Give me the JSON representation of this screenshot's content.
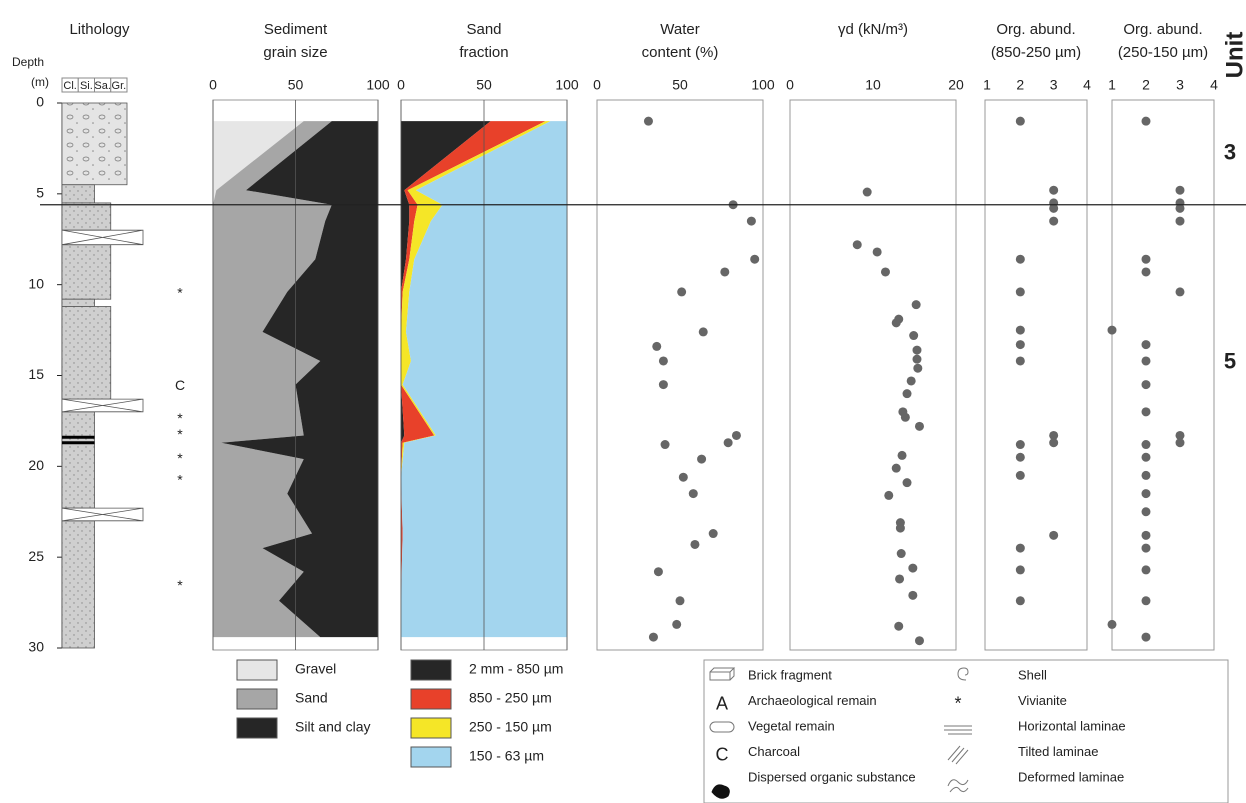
{
  "units": {
    "title": "Unit",
    "boundary": 5.6,
    "items": [
      {
        "label": "3",
        "top": 0,
        "bottom": 5.6
      },
      {
        "label": "5",
        "top": 5.6,
        "bottom": 23
      }
    ]
  },
  "symbol_legend": [
    {
      "label": "Brick fragment"
    },
    {
      "symbol": "A",
      "label": "Archaeological remain"
    },
    {
      "label": "Vegetal remain"
    },
    {
      "symbol": "C",
      "label": "Charcoal"
    },
    {
      "label": "Dispersed organic substance"
    },
    {
      "label": "Shell"
    },
    {
      "symbol": "*",
      "label": "Vivianite"
    },
    {
      "label": "Horizontal laminae"
    },
    {
      "label": "Tilted laminae"
    },
    {
      "label": "Deformed laminae"
    }
  ],
  "chart_data": [
    {
      "type": "lithology",
      "title": [
        "Lithology"
      ],
      "y_label": [
        "Depth",
        "(m)"
      ],
      "ylim": [
        0,
        30
      ],
      "yticks": [
        0,
        5,
        10,
        15,
        20,
        25,
        30
      ],
      "columns": [
        "Cl.",
        "Si.",
        "Sa.",
        "Gr."
      ],
      "layers": [
        {
          "top": 0,
          "bottom": 4.5,
          "grain": "Gr."
        },
        {
          "top": 4.5,
          "bottom": 5.5,
          "grain": "Si."
        },
        {
          "top": 5.5,
          "bottom": 7,
          "grain": "Sa."
        },
        {
          "top": 7.8,
          "bottom": 10.8,
          "grain": "Sa."
        },
        {
          "top": 10.8,
          "bottom": 11.2,
          "grain": "Si."
        },
        {
          "top": 11.2,
          "bottom": 16.3,
          "grain": "Sa."
        },
        {
          "top": 17,
          "bottom": 22.3,
          "grain": "Si."
        },
        {
          "top": 23,
          "bottom": 30,
          "grain": "Si."
        }
      ],
      "gaps": [
        [
          7,
          7.8
        ],
        [
          16.3,
          17
        ],
        [
          22.3,
          23
        ]
      ],
      "bands": [
        18.4,
        18.7
      ],
      "annotations": [
        {
          "depth": 10.5,
          "label": "*"
        },
        {
          "depth": 15.6,
          "label": "C"
        },
        {
          "depth": 17.4,
          "label": "*"
        },
        {
          "depth": 18.3,
          "label": "*"
        },
        {
          "depth": 19.6,
          "label": "*"
        },
        {
          "depth": 20.8,
          "label": "*"
        },
        {
          "depth": 26.6,
          "label": "*"
        }
      ]
    },
    {
      "type": "stacked-area",
      "title": [
        "Sediment",
        "grain size"
      ],
      "xlim": [
        0,
        100
      ],
      "xticks": [
        0,
        50,
        100
      ],
      "grid": true,
      "depth": [
        1,
        4.8,
        5.6,
        6.5,
        8.6,
        10.4,
        12.6,
        14.2,
        15.5,
        18.3,
        18.7,
        19.6,
        21.5,
        23.7,
        24.5,
        25.8,
        27.4,
        29.4
      ],
      "series": [
        {
          "name": "Gravel",
          "color": "#e6e6e6",
          "values": [
            55,
            2,
            0,
            0,
            0,
            0,
            0,
            0,
            0,
            0,
            0,
            0,
            0,
            0,
            0,
            0,
            0,
            0
          ]
        },
        {
          "name": "Sand",
          "color": "#a6a6a6",
          "values": [
            17,
            18,
            72,
            68,
            62,
            45,
            30,
            65,
            50,
            55,
            5,
            55,
            45,
            60,
            30,
            55,
            40,
            65
          ]
        },
        {
          "name": "Silt and clay",
          "color": "#262626",
          "values": [
            28,
            80,
            28,
            32,
            38,
            55,
            70,
            35,
            50,
            45,
            95,
            45,
            55,
            40,
            70,
            45,
            60,
            35
          ]
        }
      ]
    },
    {
      "type": "stacked-area",
      "title": [
        "Sand",
        "fraction"
      ],
      "xlim": [
        0,
        100
      ],
      "xticks": [
        0,
        50,
        100
      ],
      "grid": true,
      "depth": [
        1,
        4.8,
        5.6,
        6.5,
        8.6,
        10.4,
        12.6,
        14.2,
        15.5,
        18.3,
        18.7,
        20.6,
        23.7,
        27.4,
        29.4
      ],
      "series": [
        {
          "name": "2 mm - 850 µm",
          "color": "#262626",
          "values": [
            54,
            2,
            5,
            5,
            3,
            0,
            0,
            0,
            0,
            2,
            0,
            0,
            0,
            0,
            0
          ]
        },
        {
          "name": "850 - 250 µm",
          "color": "#e8412a",
          "values": [
            33,
            2,
            5,
            3,
            2,
            1,
            0,
            0,
            0,
            18,
            1,
            0,
            1,
            0,
            0
          ]
        },
        {
          "name": "250 - 150 µm",
          "color": "#f5e627",
          "values": [
            3,
            5,
            15,
            10,
            3,
            4,
            3,
            6,
            1,
            1,
            1,
            0,
            0,
            0,
            0
          ]
        },
        {
          "name": "150 - 63 µm",
          "color": "#a3d5ee",
          "values": [
            10,
            91,
            75,
            82,
            92,
            95,
            97,
            94,
            99,
            79,
            98,
            100,
            99,
            100,
            100
          ]
        }
      ]
    },
    {
      "type": "scatter",
      "title": [
        "Water",
        "content (%)"
      ],
      "xlim": [
        0,
        100
      ],
      "xticks": [
        0,
        50,
        100
      ],
      "color": "#666666",
      "depth": [
        1,
        5.6,
        6.5,
        8.6,
        9.3,
        10.4,
        12.6,
        13.4,
        14.2,
        15.5,
        18.3,
        18.7,
        18.8,
        19.6,
        20.6,
        21.5,
        23.7,
        24.3,
        25.8,
        27.4,
        28.7,
        29.4
      ],
      "values": [
        31,
        82,
        93,
        95,
        77,
        51,
        64,
        36,
        40,
        40,
        84,
        79,
        41,
        63,
        52,
        58,
        70,
        59,
        37,
        50,
        48,
        34
      ]
    },
    {
      "type": "scatter",
      "title": [
        "γd (kN/m³)"
      ],
      "xlim": [
        0,
        20
      ],
      "xticks": [
        0,
        10,
        20
      ],
      "color": "#666666",
      "depth": [
        4.9,
        7.8,
        8.2,
        9.3,
        11.1,
        11.9,
        12.1,
        12.8,
        13.6,
        14.1,
        14.6,
        15.3,
        16.0,
        17.0,
        17.3,
        17.8,
        19.4,
        20.1,
        20.9,
        21.6,
        23.1,
        23.4,
        24.8,
        25.6,
        26.2,
        27.1,
        28.8,
        29.6
      ],
      "values": [
        9.3,
        8.1,
        10.5,
        11.5,
        15.2,
        13.1,
        12.8,
        14.9,
        15.3,
        15.3,
        15.4,
        14.6,
        14.1,
        13.6,
        13.9,
        15.6,
        13.5,
        12.8,
        14.1,
        11.9,
        13.3,
        13.3,
        13.4,
        14.8,
        13.2,
        14.8,
        13.1,
        15.6
      ]
    },
    {
      "type": "scatter",
      "title": [
        "Org. abund.",
        "(850-250 µm)"
      ],
      "xlim": [
        1,
        4
      ],
      "xticks": [
        1,
        2,
        3,
        4
      ],
      "color": "#666666",
      "depth": [
        1,
        4.8,
        5.5,
        5.8,
        6.5,
        8.6,
        10.4,
        12.5,
        13.3,
        14.2,
        18.3,
        18.7,
        18.8,
        19.5,
        20.5,
        23.8,
        24.5,
        25.7,
        27.4
      ],
      "values": [
        2,
        3,
        3,
        3,
        3,
        2,
        2,
        2,
        2,
        2,
        3,
        3,
        2,
        2,
        2,
        3,
        2,
        2,
        2
      ]
    },
    {
      "type": "scatter",
      "title": [
        "Org. abund.",
        "(250-150 µm)"
      ],
      "xlim": [
        1,
        4
      ],
      "xticks": [
        1,
        2,
        3,
        4
      ],
      "color": "#666666",
      "depth": [
        1,
        4.8,
        5.5,
        5.8,
        6.5,
        8.6,
        9.3,
        10.4,
        12.5,
        13.3,
        14.2,
        15.5,
        17.0,
        18.3,
        18.7,
        18.8,
        19.5,
        20.5,
        21.5,
        22.5,
        23.8,
        24.5,
        25.7,
        27.4,
        28.7,
        29.4
      ],
      "values": [
        2,
        3,
        3,
        3,
        3,
        2,
        2,
        3,
        1,
        2,
        2,
        2,
        2,
        3,
        3,
        2,
        2,
        2,
        2,
        2,
        2,
        2,
        2,
        2,
        1,
        2
      ]
    }
  ]
}
